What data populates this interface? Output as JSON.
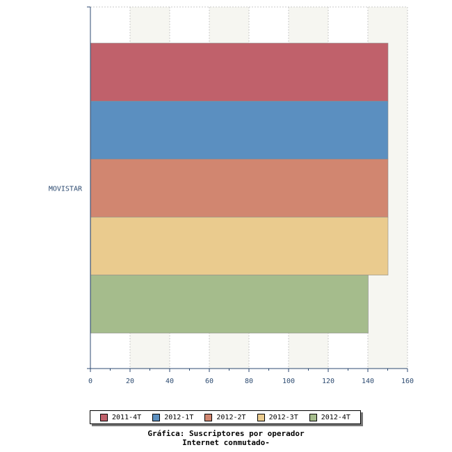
{
  "chart_data": {
    "type": "bar",
    "orientation": "horizontal",
    "categories": [
      "MOVISTAR"
    ],
    "series": [
      {
        "name": "2011-4T",
        "values": [
          150
        ],
        "color": "#c0616b"
      },
      {
        "name": "2012-1T",
        "values": [
          150
        ],
        "color": "#5b8fc0"
      },
      {
        "name": "2012-2T",
        "values": [
          150
        ],
        "color": "#d18670"
      },
      {
        "name": "2012-3T",
        "values": [
          150
        ],
        "color": "#eacb8e"
      },
      {
        "name": "2012-4T",
        "values": [
          140
        ],
        "color": "#a5bc8c"
      }
    ],
    "xlim": [
      0,
      160
    ],
    "xticks": [
      0,
      20,
      40,
      60,
      80,
      100,
      120,
      140,
      160
    ],
    "grid": true,
    "legend_position": "bottom",
    "title_lines": [
      "Gráfica: Suscriptores por operador",
      "Internet conmutado-"
    ]
  }
}
